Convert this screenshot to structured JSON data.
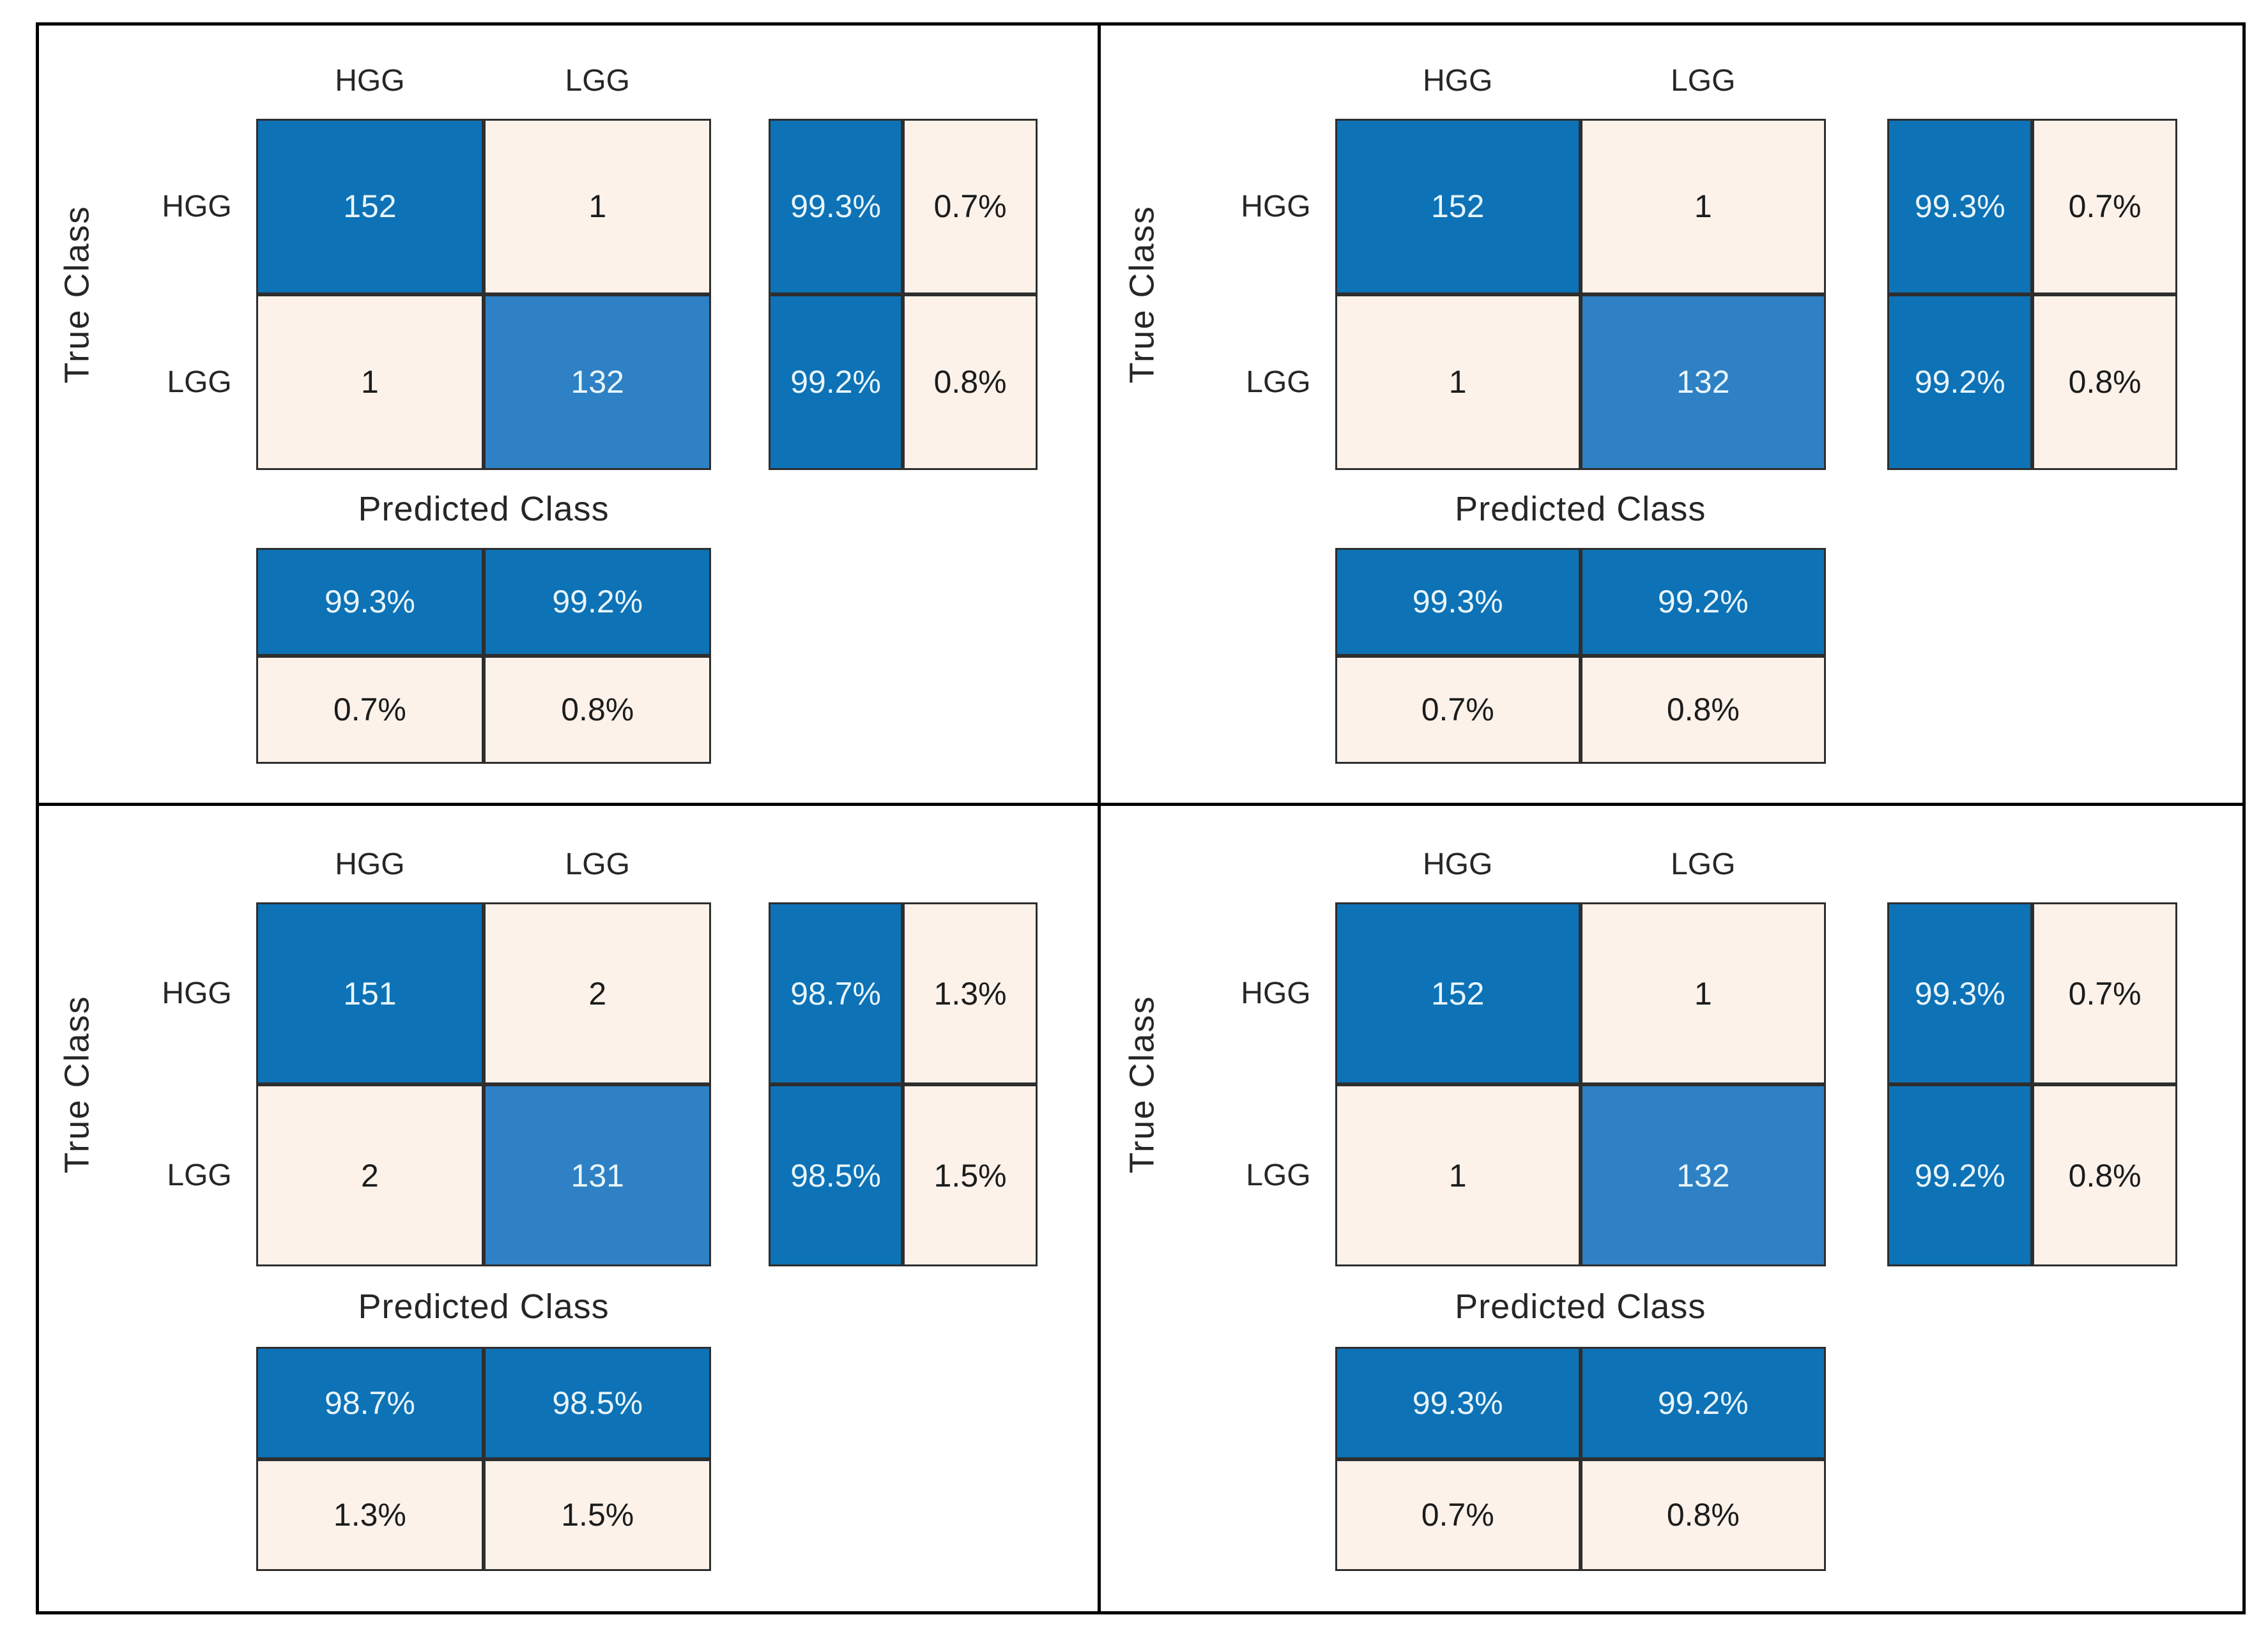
{
  "figure": {
    "description": "Four confusion matrix charts for HGG vs LGG classification, arranged in a 2x2 grid",
    "classes": [
      "HGG",
      "LGG"
    ],
    "true_axis_label": "True Class",
    "predicted_axis_label": "Predicted Class",
    "palette": {
      "diagonal_blue": "#0d72b6",
      "diagonal_blue_light": "#2e81c4",
      "off_diagonal_cream": "#fcf2ea",
      "cell_border": "#2e2e2e",
      "text_on_blue": "#e9f5fa",
      "text_dark": "#1c1c1c",
      "frame_black": "#000000"
    }
  },
  "panels": [
    {
      "position": "top-left",
      "col_headers": [
        "HGG",
        "LGG"
      ],
      "row_headers": [
        "HGG",
        "LGG"
      ],
      "cells": [
        [
          "152",
          "1"
        ],
        [
          "1",
          "132"
        ]
      ],
      "col_summary": [
        [
          "99.3%",
          "0.7%"
        ],
        [
          "99.2%",
          "0.8%"
        ]
      ],
      "row_summary": [
        [
          "99.3%",
          "99.2%"
        ],
        [
          "0.7%",
          "0.8%"
        ]
      ],
      "xlabel": "Predicted Class",
      "ylabel": "True Class"
    },
    {
      "position": "top-right",
      "col_headers": [
        "HGG",
        "LGG"
      ],
      "row_headers": [
        "HGG",
        "LGG"
      ],
      "cells": [
        [
          "152",
          "1"
        ],
        [
          "1",
          "132"
        ]
      ],
      "col_summary": [
        [
          "99.3%",
          "0.7%"
        ],
        [
          "99.2%",
          "0.8%"
        ]
      ],
      "row_summary": [
        [
          "99.3%",
          "99.2%"
        ],
        [
          "0.7%",
          "0.8%"
        ]
      ],
      "xlabel": "Predicted Class",
      "ylabel": "True Class"
    },
    {
      "position": "bottom-left",
      "col_headers": [
        "HGG",
        "LGG"
      ],
      "row_headers": [
        "HGG",
        "LGG"
      ],
      "cells": [
        [
          "151",
          "2"
        ],
        [
          "2",
          "131"
        ]
      ],
      "col_summary": [
        [
          "98.7%",
          "1.3%"
        ],
        [
          "98.5%",
          "1.5%"
        ]
      ],
      "row_summary": [
        [
          "98.7%",
          "98.5%"
        ],
        [
          "1.3%",
          "1.5%"
        ]
      ],
      "xlabel": "Predicted Class",
      "ylabel": "True Class"
    },
    {
      "position": "bottom-right",
      "col_headers": [
        "HGG",
        "LGG"
      ],
      "row_headers": [
        "HGG",
        "LGG"
      ],
      "cells": [
        [
          "152",
          "1"
        ],
        [
          "1",
          "132"
        ]
      ],
      "col_summary": [
        [
          "99.3%",
          "0.7%"
        ],
        [
          "99.2%",
          "0.8%"
        ]
      ],
      "row_summary": [
        [
          "99.3%",
          "99.2%"
        ],
        [
          "0.7%",
          "0.8%"
        ]
      ],
      "xlabel": "Predicted Class",
      "ylabel": "True Class"
    }
  ],
  "chart_data": [
    {
      "type": "heatmap",
      "subtype": "confusion-matrix",
      "position": "top-left",
      "classes": [
        "HGG",
        "LGG"
      ],
      "matrix": [
        [
          152,
          1
        ],
        [
          1,
          132
        ]
      ],
      "row_summary_pct": [
        [
          99.3,
          0.7
        ],
        [
          99.2,
          0.8
        ]
      ],
      "column_summary_pct": [
        [
          99.3,
          99.2
        ],
        [
          0.7,
          0.8
        ]
      ],
      "xlabel": "Predicted Class",
      "ylabel": "True Class"
    },
    {
      "type": "heatmap",
      "subtype": "confusion-matrix",
      "position": "top-right",
      "classes": [
        "HGG",
        "LGG"
      ],
      "matrix": [
        [
          152,
          1
        ],
        [
          1,
          132
        ]
      ],
      "row_summary_pct": [
        [
          99.3,
          0.7
        ],
        [
          99.2,
          0.8
        ]
      ],
      "column_summary_pct": [
        [
          99.3,
          99.2
        ],
        [
          0.7,
          0.8
        ]
      ],
      "xlabel": "Predicted Class",
      "ylabel": "True Class"
    },
    {
      "type": "heatmap",
      "subtype": "confusion-matrix",
      "position": "bottom-left",
      "classes": [
        "HGG",
        "LGG"
      ],
      "matrix": [
        [
          151,
          2
        ],
        [
          2,
          131
        ]
      ],
      "row_summary_pct": [
        [
          98.7,
          1.3
        ],
        [
          98.5,
          1.5
        ]
      ],
      "column_summary_pct": [
        [
          98.7,
          98.5
        ],
        [
          1.3,
          1.5
        ]
      ],
      "xlabel": "Predicted Class",
      "ylabel": "True Class"
    },
    {
      "type": "heatmap",
      "subtype": "confusion-matrix",
      "position": "bottom-right",
      "classes": [
        "HGG",
        "LGG"
      ],
      "matrix": [
        [
          152,
          1
        ],
        [
          1,
          132
        ]
      ],
      "row_summary_pct": [
        [
          99.3,
          0.7
        ],
        [
          99.2,
          0.8
        ]
      ],
      "column_summary_pct": [
        [
          99.3,
          99.2
        ],
        [
          0.7,
          0.8
        ]
      ],
      "xlabel": "Predicted Class",
      "ylabel": "True Class"
    }
  ]
}
